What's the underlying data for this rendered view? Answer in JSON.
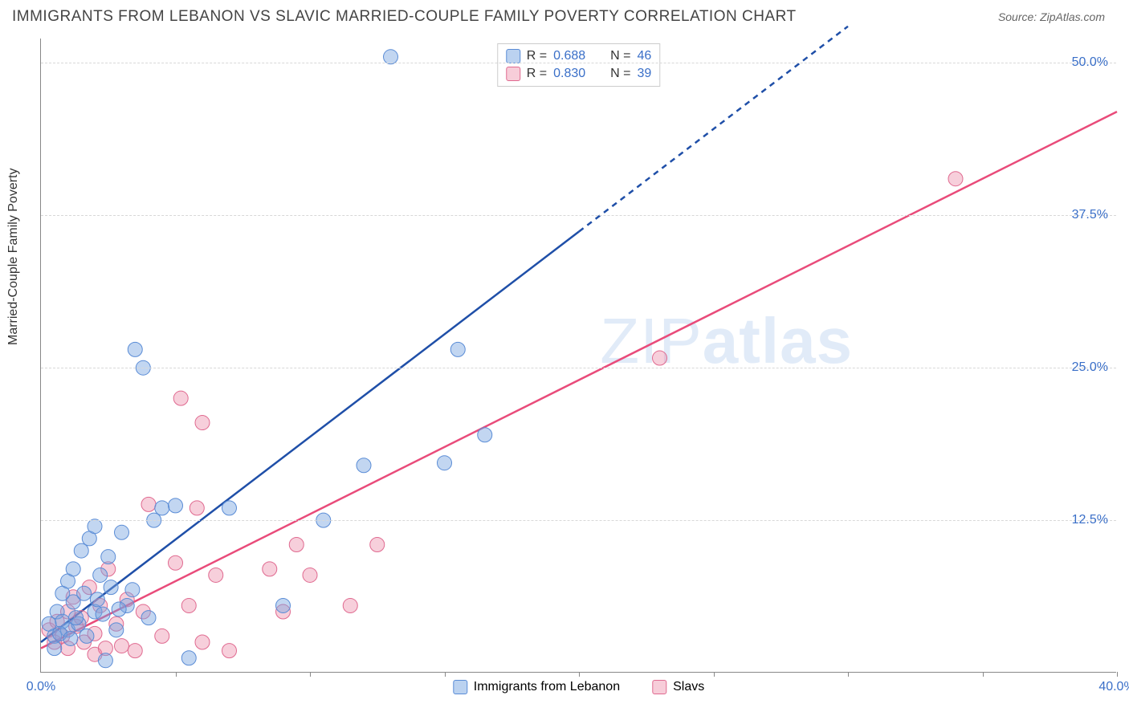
{
  "header": {
    "title": "IMMIGRANTS FROM LEBANON VS SLAVIC MARRIED-COUPLE FAMILY POVERTY CORRELATION CHART",
    "source_prefix": "Source: ",
    "source": "ZipAtlas.com"
  },
  "axes": {
    "ylabel": "Married-Couple Family Poverty",
    "xlabel": "",
    "xlim": [
      0,
      40
    ],
    "ylim": [
      0,
      52
    ],
    "yticks": [
      {
        "v": 12.5,
        "label": "12.5%"
      },
      {
        "v": 25.0,
        "label": "25.0%"
      },
      {
        "v": 37.5,
        "label": "37.5%"
      },
      {
        "v": 50.0,
        "label": "50.0%"
      }
    ],
    "xtick_marks": [
      5,
      10,
      15,
      20,
      25,
      30,
      35,
      40
    ],
    "xtick_labels": [
      {
        "v": 0,
        "label": "0.0%"
      },
      {
        "v": 40,
        "label": "40.0%"
      }
    ],
    "grid_color": "#d8d8d8",
    "axis_color": "#888888",
    "tick_color": "#3a6fc8"
  },
  "legend_top": {
    "rows": [
      {
        "swatch": "blue",
        "r_label": "R =",
        "r": "0.688",
        "n_label": "N =",
        "n": "46"
      },
      {
        "swatch": "pink",
        "r_label": "R =",
        "r": "0.830",
        "n_label": "N =",
        "n": "39"
      }
    ]
  },
  "legend_bottom": {
    "items": [
      {
        "swatch": "blue",
        "label": "Immigrants from Lebanon"
      },
      {
        "swatch": "pink",
        "label": "Slavs"
      }
    ]
  },
  "series_blue": {
    "name": "Immigrants from Lebanon",
    "marker_radius": 9,
    "fill": "rgba(120,165,225,0.45)",
    "stroke": "#5a8cd6",
    "line": {
      "stroke": "#1f4fa8",
      "width": 2.5,
      "solid_to_x": 20,
      "dash_to_x": 30,
      "y_at_x0": 2.5,
      "y_at_x30": 53
    },
    "points": [
      [
        0.3,
        4.0
      ],
      [
        0.5,
        3.0
      ],
      [
        0.6,
        5.0
      ],
      [
        0.8,
        6.5
      ],
      [
        0.8,
        4.2
      ],
      [
        1.0,
        7.5
      ],
      [
        1.0,
        3.5
      ],
      [
        1.2,
        5.8
      ],
      [
        1.2,
        8.5
      ],
      [
        1.4,
        4.0
      ],
      [
        1.5,
        10.0
      ],
      [
        1.6,
        6.5
      ],
      [
        1.8,
        11.0
      ],
      [
        2.0,
        5.0
      ],
      [
        2.0,
        12.0
      ],
      [
        2.2,
        8.0
      ],
      [
        2.4,
        1.0
      ],
      [
        2.5,
        9.5
      ],
      [
        2.8,
        3.5
      ],
      [
        3.0,
        11.5
      ],
      [
        3.2,
        5.5
      ],
      [
        3.5,
        26.5
      ],
      [
        3.8,
        25.0
      ],
      [
        4.0,
        4.5
      ],
      [
        4.2,
        12.5
      ],
      [
        4.5,
        13.5
      ],
      [
        5.0,
        13.7
      ],
      [
        5.5,
        1.2
      ],
      [
        7.0,
        13.5
      ],
      [
        9.0,
        5.5
      ],
      [
        10.5,
        12.5
      ],
      [
        12.0,
        17.0
      ],
      [
        13.0,
        50.5
      ],
      [
        15.0,
        17.2
      ],
      [
        15.5,
        26.5
      ],
      [
        16.5,
        19.5
      ],
      [
        0.5,
        2.0
      ],
      [
        0.7,
        3.2
      ],
      [
        1.1,
        2.8
      ],
      [
        1.3,
        4.5
      ],
      [
        1.7,
        3.0
      ],
      [
        2.1,
        6.0
      ],
      [
        2.3,
        4.8
      ],
      [
        2.6,
        7.0
      ],
      [
        2.9,
        5.2
      ],
      [
        3.4,
        6.8
      ]
    ]
  },
  "series_pink": {
    "name": "Slavs",
    "marker_radius": 9,
    "fill": "rgba(235,130,160,0.38)",
    "stroke": "#e06a90",
    "line": {
      "stroke": "#e94b7a",
      "width": 2.5,
      "y_at_x0": 2.0,
      "y_at_x40": 46
    },
    "points": [
      [
        0.3,
        3.5
      ],
      [
        0.5,
        2.5
      ],
      [
        0.6,
        4.2
      ],
      [
        0.8,
        3.0
      ],
      [
        1.0,
        5.0
      ],
      [
        1.0,
        2.0
      ],
      [
        1.2,
        6.2
      ],
      [
        1.3,
        3.8
      ],
      [
        1.5,
        4.5
      ],
      [
        1.6,
        2.5
      ],
      [
        1.8,
        7.0
      ],
      [
        2.0,
        3.2
      ],
      [
        2.0,
        1.5
      ],
      [
        2.2,
        5.5
      ],
      [
        2.4,
        2.0
      ],
      [
        2.5,
        8.5
      ],
      [
        2.8,
        4.0
      ],
      [
        3.0,
        2.2
      ],
      [
        3.2,
        6.0
      ],
      [
        3.5,
        1.8
      ],
      [
        3.8,
        5.0
      ],
      [
        4.0,
        13.8
      ],
      [
        4.5,
        3.0
      ],
      [
        5.0,
        9.0
      ],
      [
        5.2,
        22.5
      ],
      [
        5.5,
        5.5
      ],
      [
        5.8,
        13.5
      ],
      [
        6.0,
        2.5
      ],
      [
        6.0,
        20.5
      ],
      [
        6.5,
        8.0
      ],
      [
        7.0,
        1.8
      ],
      [
        8.5,
        8.5
      ],
      [
        9.0,
        5.0
      ],
      [
        9.5,
        10.5
      ],
      [
        10.0,
        8.0
      ],
      [
        11.5,
        5.5
      ],
      [
        12.5,
        10.5
      ],
      [
        23.0,
        25.8
      ],
      [
        34.0,
        40.5
      ]
    ]
  },
  "watermark": {
    "text_plain": "ZIP",
    "text_bold": "atlas"
  },
  "colors": {
    "background": "#ffffff",
    "title_color": "#444444",
    "source_color": "#666666"
  }
}
